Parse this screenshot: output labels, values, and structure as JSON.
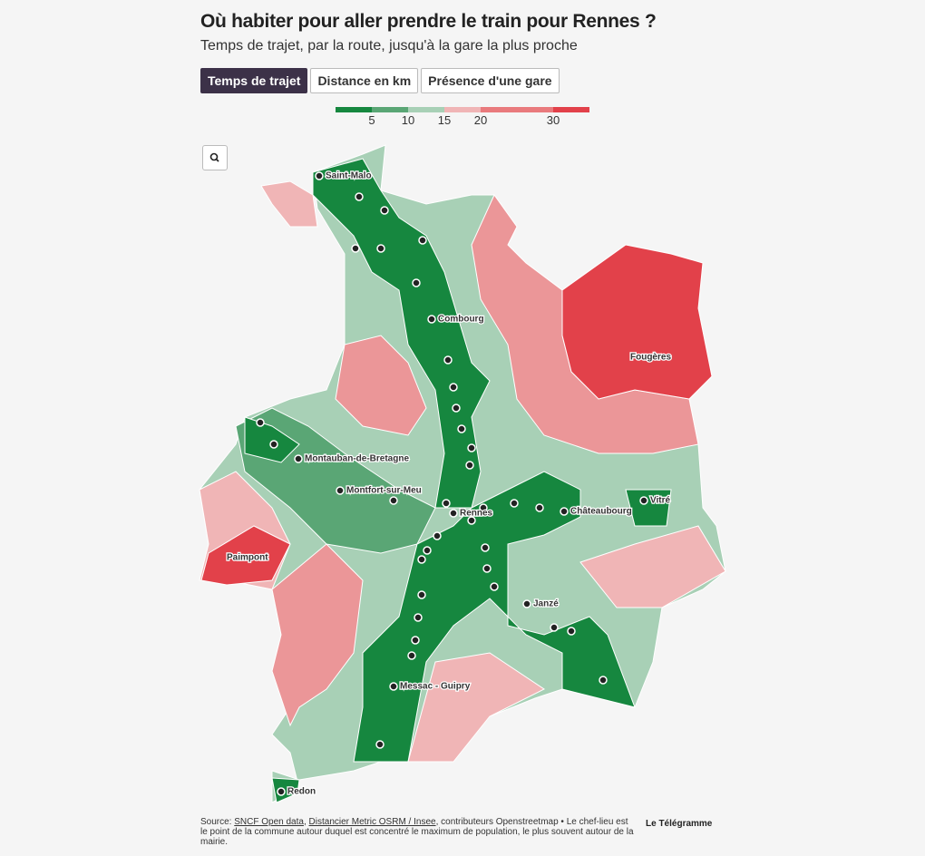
{
  "title": "Où habiter pour aller prendre le train pour Rennes ?",
  "subtitle": "Temps de trajet, par la route, jusqu'à la gare la plus proche",
  "tabs": [
    "Temps de trajet",
    "Distance en km",
    "Présence d'une gare"
  ],
  "legend": {
    "lim": [
      0,
      35
    ],
    "ticks": [
      5,
      10,
      15,
      20,
      30
    ],
    "colors": [
      "#16873f",
      "#5aa675",
      "#a8d0b6",
      "#f0b5b6",
      "#e97a7d",
      "#e2414a"
    ]
  },
  "cities": [
    "Saint-Malo",
    "Combourg",
    "Fougères",
    "Montauban-de-Bretagne",
    "Montfort-sur-Meu",
    "Rennes",
    "Châteaubourg",
    "Vitré",
    "Paimpont",
    "Janzé",
    "Messac - Guipry",
    "Redon"
  ],
  "source": {
    "prefix": "Source: ",
    "link1": "SNCF Open data",
    "sep": ", ",
    "link2": "Distancier Metric OSRM / Insee",
    "rest": ", contributeurs Openstreetmap • Le chef-lieu est le point de la commune autour duquel est concentré le maximum de population, le plus souvent autour de la mairie."
  },
  "logo": "Le Télégramme"
}
